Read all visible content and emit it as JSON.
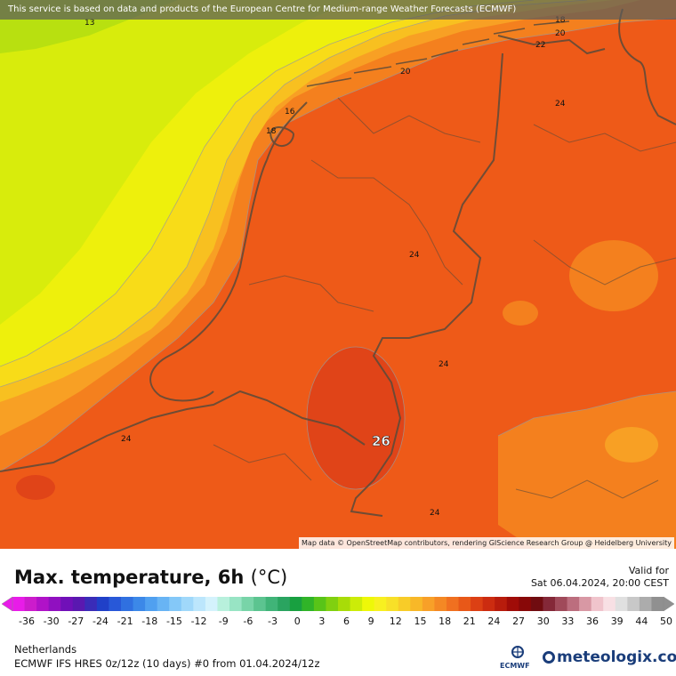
{
  "banner": "This service is based on data and products of the European Centre for Medium-range Weather Forecasts (ECMWF)",
  "map_credit": "Map data © OpenStreetMap contributors, rendering GIScience Research Group @ Heidelberg University",
  "title": "Max. temperature, 6h",
  "unit": "(°C)",
  "valid_label": "Valid for",
  "valid_time": "Sat 06.04.2024, 20:00 CEST",
  "region": "Netherlands",
  "model_run": "ECMWF IFS HRES 0z/12z (10 days) #0 from  01.04.2024/12z",
  "ecmwf_logo": "ECMWF",
  "provider": "meteologix.com",
  "scale": {
    "ticks": [
      "-36",
      "-30",
      "-27",
      "-24",
      "-21",
      "-18",
      "-15",
      "-12",
      "-9",
      "-6",
      "-3",
      "0",
      "3",
      "6",
      "9",
      "12",
      "15",
      "18",
      "21",
      "24",
      "27",
      "30",
      "33",
      "36",
      "39",
      "44",
      "50"
    ],
    "colors": [
      "#e81ce8",
      "#cc1ccc",
      "#b012c8",
      "#9010c0",
      "#7010b8",
      "#5a18b0",
      "#3a2cb8",
      "#2040c8",
      "#2858d8",
      "#3070e0",
      "#3c88e8",
      "#50a0f0",
      "#68b4f4",
      "#84c8f8",
      "#a0d8fa",
      "#bce6fc",
      "#d4f2fc",
      "#b8f0dc",
      "#98e4c4",
      "#78d4a8",
      "#5cc490",
      "#40b478",
      "#2aa460",
      "#18a040",
      "#30b428",
      "#58c418",
      "#80d010",
      "#a8dc08",
      "#ccec08",
      "#eef808",
      "#f8f020",
      "#f8e028",
      "#f8cc28",
      "#f8b828",
      "#f8a028",
      "#f48824",
      "#f07020",
      "#e85818",
      "#dc4014",
      "#cc2c10",
      "#b81c0c",
      "#a00c08",
      "#880808",
      "#700c10",
      "#842838",
      "#a04a5a",
      "#bc6e7e",
      "#d898a4",
      "#f0c4cc",
      "#f8e0e4",
      "#e0e0e0",
      "#c8c8c8",
      "#acacac",
      "#909090"
    ]
  },
  "isolines": {
    "16": "16",
    "18": "18",
    "20": "20",
    "22": "22",
    "24": "24",
    "26": "26",
    "13": "13"
  }
}
